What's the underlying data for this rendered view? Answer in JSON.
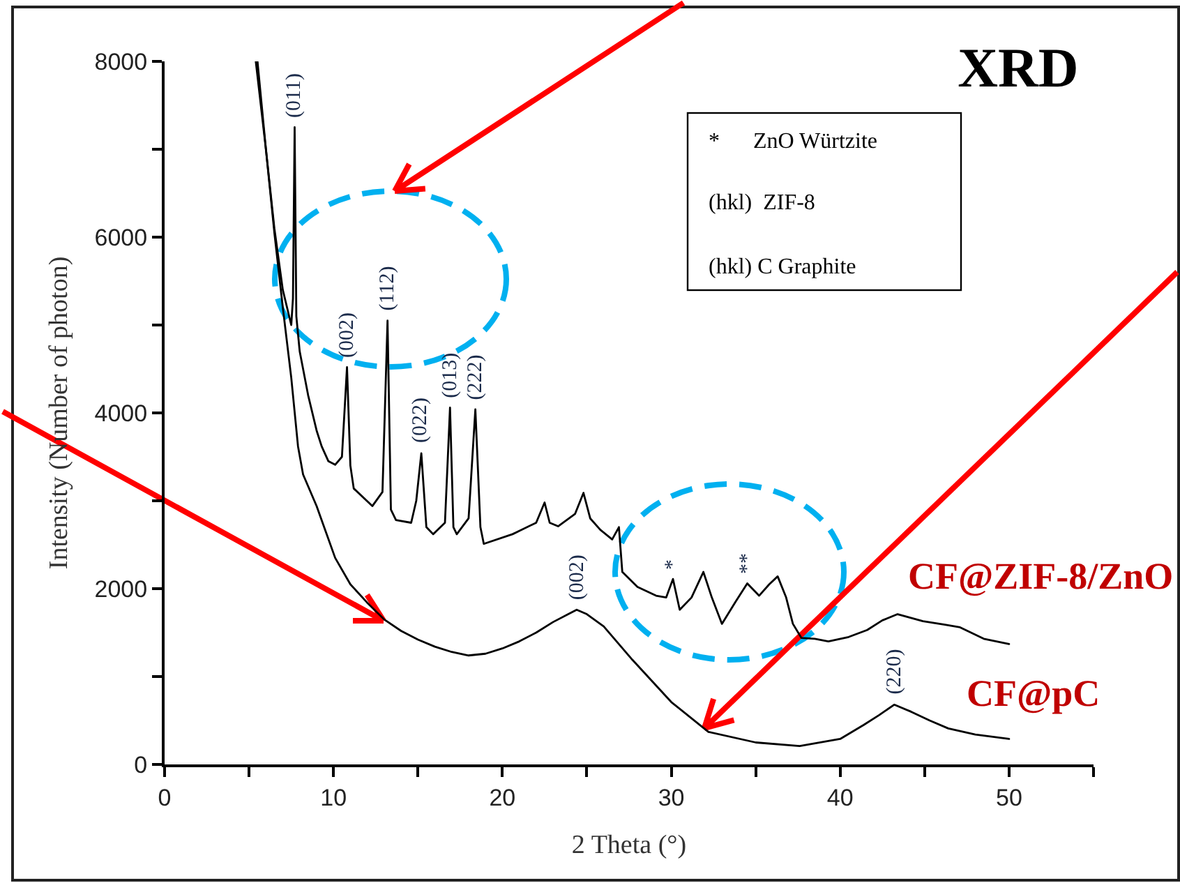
{
  "chart_data": {
    "type": "line",
    "title": "XRD",
    "xlabel": "2 Theta (°)",
    "ylabel": "Intensity (Number of photon)",
    "xlim": [
      0,
      55
    ],
    "ylim": [
      0,
      8000
    ],
    "xticks": [
      0,
      {
        "value": 5,
        "label": null
      },
      10,
      {
        "value": 15,
        "label": null
      },
      20,
      {
        "value": 25,
        "label": null
      },
      30,
      {
        "value": 35,
        "label": null
      },
      40,
      {
        "value": 45,
        "label": null
      },
      50,
      {
        "value": 55,
        "label": null
      }
    ],
    "yticks": [
      0,
      {
        "value": 1000,
        "label": null
      },
      2000,
      {
        "value": 3000,
        "label": null
      },
      4000,
      {
        "value": 5000,
        "label": null
      },
      6000,
      {
        "value": 7000,
        "label": null
      },
      8000
    ],
    "grid": false,
    "legend": false,
    "series": [
      {
        "name": "CF@ZIF-8/ZnO",
        "color": "#000000",
        "x": [
          5.5,
          6.0,
          6.5,
          7.0,
          7.5,
          7.6,
          7.7,
          7.8,
          8.0,
          8.5,
          9.0,
          9.3,
          9.7,
          10.1,
          10.5,
          10.8,
          11.0,
          11.2,
          12.3,
          12.9,
          13.2,
          13.4,
          13.7,
          14.6,
          14.9,
          15.2,
          15.5,
          15.9,
          16.6,
          16.9,
          17.1,
          17.3,
          18.0,
          18.4,
          18.7,
          18.9,
          20.6,
          22.0,
          22.5,
          22.8,
          23.3,
          24.3,
          24.8,
          25.2,
          25.8,
          26.5,
          26.9,
          27.1,
          28.0,
          29.1,
          29.7,
          30.1,
          30.5,
          31.2,
          31.9,
          32.4,
          33.0,
          33.8,
          34.5,
          35.2,
          35.8,
          36.3,
          36.8,
          37.2,
          37.7,
          38.5,
          39.3,
          40.5,
          41.6,
          42.5,
          43.4,
          44.9,
          46.2,
          47.1,
          48.5,
          50.0
        ],
        "values": [
          8000,
          7000,
          6100,
          5400,
          5000,
          5300,
          7250,
          5100,
          4700,
          4200,
          3800,
          3620,
          3450,
          3410,
          3500,
          4520,
          3400,
          3140,
          2940,
          3100,
          5050,
          2900,
          2780,
          2750,
          3000,
          3540,
          2700,
          2620,
          2750,
          4060,
          2700,
          2620,
          2800,
          4040,
          2700,
          2510,
          2620,
          2750,
          2980,
          2750,
          2710,
          2850,
          3090,
          2800,
          2670,
          2560,
          2700,
          2190,
          2020,
          1920,
          1900,
          2110,
          1760,
          1900,
          2190,
          1900,
          1600,
          1850,
          2060,
          1920,
          2050,
          2140,
          1900,
          1600,
          1440,
          1430,
          1400,
          1450,
          1530,
          1640,
          1710,
          1630,
          1590,
          1560,
          1430,
          1370
        ]
      },
      {
        "name": "CF@pC",
        "color": "#000000",
        "x": [
          5.4,
          6.0,
          6.5,
          7.0,
          7.5,
          7.9,
          8.2,
          9.0,
          10.1,
          11.0,
          12.0,
          13.0,
          14.0,
          15.0,
          16.0,
          17.0,
          18.0,
          19.0,
          20.0,
          21.0,
          22.0,
          23.0,
          24.0,
          24.4,
          25.0,
          26.0,
          27.7,
          30.0,
          32.2,
          35.0,
          37.6,
          40.0,
          41.4,
          42.3,
          43.2,
          44.2,
          45.3,
          46.4,
          48.0,
          50.0
        ],
        "values": [
          8000,
          7000,
          6050,
          5200,
          4400,
          3620,
          3300,
          2940,
          2350,
          2050,
          1840,
          1650,
          1520,
          1420,
          1340,
          1280,
          1240,
          1260,
          1320,
          1400,
          1500,
          1620,
          1720,
          1760,
          1710,
          1570,
          1190,
          710,
          370,
          250,
          210,
          290,
          450,
          560,
          680,
          600,
          500,
          410,
          340,
          290
        ]
      }
    ],
    "annotations": [
      "*      ZnO Würtzite",
      "(hkl)  ZIF-8",
      "(hkl) C Graphite",
      {
        "text": "(011)",
        "x": 7.7,
        "y": 7250
      },
      {
        "text": "(002)",
        "x": 10.8,
        "y": 4520
      },
      {
        "text": "(112)",
        "x": 13.2,
        "y": 5050
      },
      {
        "text": "(022)",
        "x": 15.2,
        "y": 3540
      },
      {
        "text": "(013)",
        "x": 16.9,
        "y": 4060
      },
      {
        "text": "(222)",
        "x": 18.4,
        "y": 4040
      },
      {
        "text": "(002)",
        "x": 24.4,
        "y": 1760
      },
      {
        "text": "(220)",
        "x": 43.2,
        "y": 680
      },
      {
        "text": "*",
        "x": 30.1,
        "y": 2110
      },
      {
        "text": "**",
        "x": 34.5,
        "y": 2060
      }
    ]
  }
}
